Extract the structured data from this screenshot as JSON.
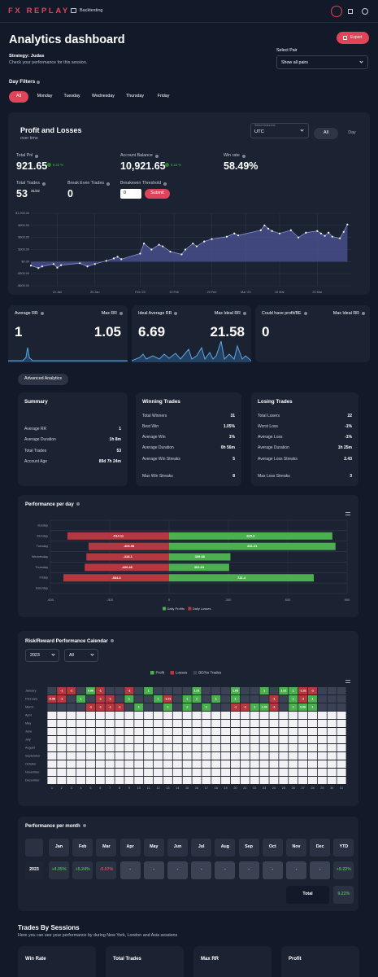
{
  "header": {
    "logo": "FX REPLAY",
    "nav": "Backtesting"
  },
  "page": {
    "title": "Analytics dashboard",
    "export": "Export",
    "strategy": "Strategy: Judas",
    "subtitle": "Check your performance for this session.",
    "pair_label": "Select Pair",
    "pair_value": "Show all pairs"
  },
  "day_filters": {
    "label": "Day Filters",
    "options": [
      "All",
      "Monday",
      "Tuesday",
      "Wednesday",
      "Thursday",
      "Friday"
    ],
    "active": 0
  },
  "pnl": {
    "title": "Profit and Losses",
    "subtitle": "over time",
    "timezone_label": "Select timezone",
    "timezone": "UTC",
    "ranges": [
      "All",
      "Day"
    ],
    "active_range": 0,
    "stats": [
      {
        "label": "Total Pnl",
        "value": "921.65",
        "badge": "9.22 %"
      },
      {
        "label": "Account Balance",
        "value": "10,921.65",
        "badge": "9.22 %"
      },
      {
        "label": "Win rate",
        "value": "58.49%"
      }
    ],
    "trades": {
      "label": "Total Trades",
      "value": "53",
      "ratio": "31/22"
    },
    "break_even": {
      "label": "Break Even Trades",
      "value": "0"
    },
    "threshold": {
      "label": "Breakeven Threshold",
      "input": "0",
      "button": "Submit"
    },
    "chart": {
      "type": "area",
      "color": "#8c93d6",
      "grid": true,
      "x": [
        "2023-01-03",
        "2023-01-05",
        "2023-01-06",
        "2023-01-09",
        "2023-01-10",
        "2023-01-11",
        "2023-01-16",
        "2023-01-18",
        "2023-01-20",
        "2023-01-23",
        "2023-01-25",
        "2023-01-26",
        "2023-01-27",
        "2023-02-01",
        "2023-02-02",
        "2023-02-04",
        "2023-02-06",
        "2023-02-07",
        "2023-02-09",
        "2023-02-12",
        "2023-02-13",
        "2023-02-15",
        "2023-02-16",
        "2023-02-18",
        "2023-02-20",
        "2023-02-24",
        "2023-02-26",
        "2023-02-27",
        "2023-03-05",
        "2023-03-06",
        "2023-03-07",
        "2023-03-08",
        "2023-03-10",
        "2023-03-13",
        "2023-03-15",
        "2023-03-17",
        "2023-03-20",
        "2023-03-21",
        "2023-03-22",
        "2023-03-23",
        "2023-03-24",
        "2023-03-26",
        "2023-03-27",
        "2023-03-28"
      ],
      "values": [
        -100,
        -160,
        -120,
        -60,
        -150,
        -90,
        -40,
        -120,
        -60,
        20,
        80,
        120,
        60,
        200,
        450,
        300,
        420,
        380,
        250,
        180,
        300,
        450,
        380,
        500,
        560,
        620,
        700,
        650,
        780,
        900,
        820,
        760,
        700,
        780,
        600,
        720,
        760,
        700,
        640,
        720,
        620,
        580,
        740,
        921.65
      ],
      "xlim": [
        "2023-01-03",
        "2023-03-29"
      ],
      "ylim": [
        -600,
        1200
      ],
      "yticks": [
        {
          "value": 1200,
          "label": "$1,200.00"
        },
        {
          "value": 900,
          "label": "$900.00"
        },
        {
          "value": 600,
          "label": "$600.00"
        },
        {
          "value": 300,
          "label": "$300.00"
        },
        {
          "value": 0,
          "label": "$0.00"
        },
        {
          "value": -300,
          "label": "-$300.00"
        },
        {
          "value": -600,
          "label": "-$600.00"
        }
      ],
      "xticks": [
        {
          "value": "2023-01-10",
          "label": "10 Jan"
        },
        {
          "value": "2023-01-20",
          "label": "20 Jan"
        },
        {
          "value": "2023-02-01",
          "label": "Feb '23"
        },
        {
          "value": "2023-02-10",
          "label": "10 Feb"
        },
        {
          "value": "2023-02-20",
          "label": "20 Feb"
        },
        {
          "value": "2023-03-01",
          "label": "Mar '23"
        },
        {
          "value": "2023-03-10",
          "label": "10 Mar"
        },
        {
          "value": "2023-03-20",
          "label": "20 Mar"
        }
      ]
    }
  },
  "rr_cards": [
    {
      "label": "Average RR",
      "value": "1",
      "max_label": "Max RR",
      "max_value": "1.05"
    },
    {
      "label": "Ideal Average RR",
      "value": "6.69",
      "max_label": "Max Ideal RR",
      "max_value": "21.58"
    },
    {
      "label": "Could have profit/BE",
      "value": "0",
      "max_label": "Max Ideal RR"
    }
  ],
  "advanced": "Advanced Analytics",
  "summary_cards": [
    {
      "title": "Summary",
      "rows": [
        [
          "Average RR",
          "1"
        ],
        [
          "Average Duration",
          "1h 8m"
        ],
        [
          "Total Trades",
          "53"
        ],
        [
          "Account Age",
          "89d 7h 24m"
        ]
      ]
    },
    {
      "title": "Winning Trades",
      "rows": [
        [
          "Total Winners",
          "31"
        ],
        [
          "Best Win",
          "1.05%"
        ],
        [
          "Average Win",
          "1%"
        ],
        [
          "Average Duration",
          "0h 56m"
        ],
        [
          "Average Win Streaks",
          "5"
        ],
        [
          "Max Win Streaks",
          "8"
        ]
      ]
    },
    {
      "title": "Losing Trades",
      "rows": [
        [
          "Total Losers",
          "22"
        ],
        [
          "Worst Loss",
          "-1%"
        ],
        [
          "Average Loss",
          "-1%"
        ],
        [
          "Average Duration",
          "1h 25m"
        ],
        [
          "Average Loss Streaks",
          "2.43"
        ],
        [
          "Max Loss Streaks",
          "3"
        ]
      ]
    }
  ],
  "per_day": {
    "type": "bar",
    "title": "Performance per day",
    "categories": [
      "Sunday",
      "Monday",
      "Tuesday",
      "Wednesday",
      "Thursday",
      "Friday",
      "Saturday"
    ],
    "series": [
      {
        "name": "Daily Profits",
        "color": "#4caf50",
        "values": [
          null,
          825.3,
          841.21,
          309.98,
          303.63,
          731.4,
          null
        ]
      },
      {
        "name": "Daily Losses",
        "color": "#b5373f",
        "values": [
          null,
          -514.11,
          -406.98,
          -418.1,
          -426.48,
          -534.3,
          null
        ]
      }
    ],
    "xlim": [
      -600,
      900
    ],
    "xticks": [
      -600,
      -300,
      0,
      300,
      600,
      900
    ],
    "grid": true
  },
  "calendar": {
    "title": "Risk/Reward Performance Calendar",
    "year": "2023",
    "filter": "All",
    "legend": [
      {
        "name": "Profit",
        "color": "#4caf50"
      },
      {
        "name": "Losses",
        "color": "#b5373f"
      },
      {
        "name": "BE/No Trades",
        "color": "#3b4254"
      }
    ],
    "months": [
      "January",
      "February",
      "March",
      "April",
      "May",
      "June",
      "July",
      "August",
      "September",
      "October",
      "November",
      "December"
    ],
    "days": [
      1,
      2,
      3,
      4,
      5,
      6,
      7,
      8,
      9,
      10,
      11,
      12,
      13,
      14,
      15,
      16,
      17,
      18,
      19,
      20,
      21,
      22,
      23,
      24,
      25,
      26,
      27,
      28,
      29,
      30,
      31
    ],
    "values": [
      [
        null,
        -1,
        -1,
        null,
        0.96,
        -1,
        null,
        null,
        -1,
        null,
        1,
        null,
        null,
        null,
        null,
        1.01,
        null,
        null,
        null,
        1.05,
        null,
        null,
        1,
        null,
        1.02,
        1,
        -1.02,
        -1,
        null,
        null,
        null
      ],
      [
        -0.96,
        -1,
        null,
        1,
        null,
        -1,
        -1,
        null,
        1,
        null,
        null,
        1,
        -1.01,
        null,
        1,
        1,
        null,
        1,
        null,
        1,
        null,
        null,
        null,
        -1,
        null,
        1,
        -1,
        1,
        null,
        null,
        null
      ],
      [
        null,
        null,
        null,
        null,
        -1,
        -1,
        -1,
        -1,
        null,
        1,
        null,
        null,
        1,
        null,
        1,
        null,
        1,
        null,
        null,
        -1,
        -1,
        1,
        1.04,
        -1,
        null,
        1,
        0.96,
        1,
        null,
        null,
        null
      ],
      [
        null,
        null,
        null,
        null,
        null,
        null,
        null,
        null,
        null,
        null,
        null,
        null,
        null,
        null,
        null,
        null,
        null,
        null,
        null,
        null,
        null,
        null,
        null,
        null,
        null,
        null,
        null,
        null,
        null,
        null,
        null
      ],
      [
        null,
        null,
        null,
        null,
        null,
        null,
        null,
        null,
        null,
        null,
        null,
        null,
        null,
        null,
        null,
        null,
        null,
        null,
        null,
        null,
        null,
        null,
        null,
        null,
        null,
        null,
        null,
        null,
        null,
        null,
        null
      ],
      [
        null,
        null,
        null,
        null,
        null,
        null,
        null,
        null,
        null,
        null,
        null,
        null,
        null,
        null,
        null,
        null,
        null,
        null,
        null,
        null,
        null,
        null,
        null,
        null,
        null,
        null,
        null,
        null,
        null,
        null,
        null
      ],
      [
        null,
        null,
        null,
        null,
        null,
        null,
        null,
        null,
        null,
        null,
        null,
        null,
        null,
        null,
        null,
        null,
        null,
        null,
        null,
        null,
        null,
        null,
        null,
        null,
        null,
        null,
        null,
        null,
        null,
        null,
        null
      ],
      [
        null,
        null,
        null,
        null,
        null,
        null,
        null,
        null,
        null,
        null,
        null,
        null,
        null,
        null,
        null,
        null,
        null,
        null,
        null,
        null,
        null,
        null,
        null,
        null,
        null,
        null,
        null,
        null,
        null,
        null,
        null
      ],
      [
        null,
        null,
        null,
        null,
        null,
        null,
        null,
        null,
        null,
        null,
        null,
        null,
        null,
        null,
        null,
        null,
        null,
        null,
        null,
        null,
        null,
        null,
        null,
        null,
        null,
        null,
        null,
        null,
        null,
        null,
        null
      ],
      [
        null,
        null,
        null,
        null,
        null,
        null,
        null,
        null,
        null,
        null,
        null,
        null,
        null,
        null,
        null,
        null,
        null,
        null,
        null,
        null,
        null,
        null,
        null,
        null,
        null,
        null,
        null,
        null,
        null,
        null,
        null
      ],
      [
        null,
        null,
        null,
        null,
        null,
        null,
        null,
        null,
        null,
        null,
        null,
        null,
        null,
        null,
        null,
        null,
        null,
        null,
        null,
        null,
        null,
        null,
        null,
        null,
        null,
        null,
        null,
        null,
        null,
        null,
        null
      ],
      [
        null,
        null,
        null,
        null,
        null,
        null,
        null,
        null,
        null,
        null,
        null,
        null,
        null,
        null,
        null,
        null,
        null,
        null,
        null,
        null,
        null,
        null,
        null,
        null,
        null,
        null,
        null,
        null,
        null,
        null,
        null
      ]
    ]
  },
  "per_month": {
    "title": "Performance per month",
    "columns": [
      "Jan",
      "Feb",
      "Mar",
      "Apr",
      "May",
      "Jun",
      "Jul",
      "Aug",
      "Sep",
      "Oct",
      "Nov",
      "Dec",
      "YTD"
    ],
    "rows": [
      {
        "label": "2023",
        "cells": [
          "+4.05%",
          "+5.24%",
          "-0.07%",
          "-",
          "-",
          "-",
          "-",
          "-",
          "-",
          "-",
          "-",
          "-",
          "+9.22%"
        ]
      }
    ],
    "total_label": "Total",
    "total": "9.22%"
  },
  "sessions": {
    "title": "Trades By Sessions",
    "subtitle": "Here you can see your performance by during New York, London and Asia sessions",
    "cards": [
      "Win Rate",
      "Total Trades",
      "Max RR",
      "Profit"
    ]
  }
}
